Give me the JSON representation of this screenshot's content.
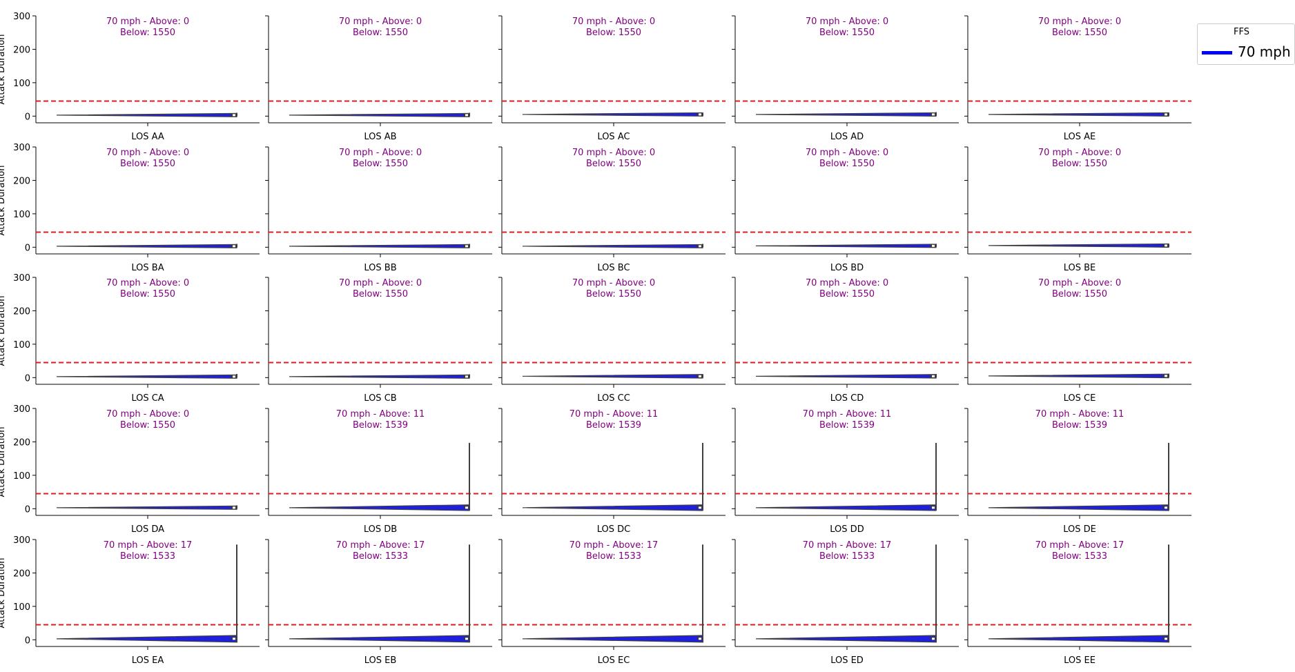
{
  "colors": {
    "violin_fill": "#1f1fe0",
    "violin_edge": "#404040",
    "threshold_line": "#e31a1c",
    "annotation_text": "#800080",
    "legend_line": "#0000ff"
  },
  "legend": {
    "title": "FFS",
    "label": "70 mph"
  },
  "chart_data": {
    "type": "violin",
    "ylabel": "Attack Duration",
    "ylim": [
      -20,
      300
    ],
    "yticks": [
      0,
      100,
      200,
      300
    ],
    "threshold": 45,
    "series_name": "70 mph",
    "panels": [
      {
        "label": "LOS AA",
        "annotation_line1": "70 mph - Above: 0",
        "annotation_line2": "Below: 1550",
        "violin": {
          "min": 0,
          "q1": 1,
          "median": 3,
          "q3": 6,
          "max": 10
        }
      },
      {
        "label": "LOS AB",
        "annotation_line1": "70 mph - Above: 0",
        "annotation_line2": "Below: 1550",
        "violin": {
          "min": 0,
          "q1": 1,
          "median": 3,
          "q3": 6,
          "max": 10
        }
      },
      {
        "label": "LOS AC",
        "annotation_line1": "70 mph - Above: 0",
        "annotation_line2": "Below: 1550",
        "violin": {
          "min": 1,
          "q1": 3,
          "median": 5,
          "q3": 7,
          "max": 10
        }
      },
      {
        "label": "LOS AD",
        "annotation_line1": "70 mph - Above: 0",
        "annotation_line2": "Below: 1550",
        "violin": {
          "min": 1,
          "q1": 3,
          "median": 5,
          "q3": 7,
          "max": 12
        }
      },
      {
        "label": "LOS AE",
        "annotation_line1": "70 mph - Above: 0",
        "annotation_line2": "Below: 1550",
        "violin": {
          "min": 1,
          "q1": 3,
          "median": 5,
          "q3": 7,
          "max": 10
        }
      },
      {
        "label": "LOS BA",
        "annotation_line1": "70 mph - Above: 0",
        "annotation_line2": "Below: 1550",
        "violin": {
          "min": 0,
          "q1": 1,
          "median": 3,
          "q3": 6,
          "max": 10
        }
      },
      {
        "label": "LOS BB",
        "annotation_line1": "70 mph - Above: 0",
        "annotation_line2": "Below: 1550",
        "violin": {
          "min": 0,
          "q1": 1,
          "median": 3,
          "q3": 6,
          "max": 10
        }
      },
      {
        "label": "LOS BC",
        "annotation_line1": "70 mph - Above: 0",
        "annotation_line2": "Below: 1550",
        "violin": {
          "min": 0,
          "q1": 1,
          "median": 3,
          "q3": 6,
          "max": 10
        }
      },
      {
        "label": "LOS BD",
        "annotation_line1": "70 mph - Above: 0",
        "annotation_line2": "Below: 1550",
        "violin": {
          "min": 1,
          "q1": 2,
          "median": 4,
          "q3": 7,
          "max": 10
        }
      },
      {
        "label": "LOS BE",
        "annotation_line1": "70 mph - Above: 0",
        "annotation_line2": "Below: 1550",
        "violin": {
          "min": 1,
          "q1": 2,
          "median": 5,
          "q3": 7,
          "max": 10
        }
      },
      {
        "label": "LOS CA",
        "annotation_line1": "70 mph - Above: 0",
        "annotation_line2": "Below: 1550",
        "violin": {
          "min": 0,
          "q1": 1,
          "median": 3,
          "q3": 6,
          "max": 11
        }
      },
      {
        "label": "LOS CB",
        "annotation_line1": "70 mph - Above: 0",
        "annotation_line2": "Below: 1550",
        "violin": {
          "min": 0,
          "q1": 1,
          "median": 3,
          "q3": 6,
          "max": 10
        }
      },
      {
        "label": "LOS CC",
        "annotation_line1": "70 mph - Above: 0",
        "annotation_line2": "Below: 1550",
        "violin": {
          "min": 0,
          "q1": 2,
          "median": 4,
          "q3": 7,
          "max": 10
        }
      },
      {
        "label": "LOS CD",
        "annotation_line1": "70 mph - Above: 0",
        "annotation_line2": "Below: 1550",
        "violin": {
          "min": 0,
          "q1": 2,
          "median": 4,
          "q3": 7,
          "max": 11
        }
      },
      {
        "label": "LOS CE",
        "annotation_line1": "70 mph - Above: 0",
        "annotation_line2": "Below: 1550",
        "violin": {
          "min": 1,
          "q1": 3,
          "median": 5,
          "q3": 8,
          "max": 12
        }
      },
      {
        "label": "LOS DA",
        "annotation_line1": "70 mph - Above: 0",
        "annotation_line2": "Below: 1550",
        "violin": {
          "min": 0,
          "q1": 1,
          "median": 3,
          "q3": 6,
          "max": 10
        }
      },
      {
        "label": "LOS DB",
        "annotation_line1": "70 mph - Above: 11",
        "annotation_line2": "Below: 1539",
        "violin": {
          "min": -5,
          "q1": 1,
          "median": 3,
          "q3": 8,
          "max": 197
        }
      },
      {
        "label": "LOS DC",
        "annotation_line1": "70 mph - Above: 11",
        "annotation_line2": "Below: 1539",
        "violin": {
          "min": -5,
          "q1": 1,
          "median": 3,
          "q3": 8,
          "max": 197
        }
      },
      {
        "label": "LOS DD",
        "annotation_line1": "70 mph - Above: 11",
        "annotation_line2": "Below: 1539",
        "violin": {
          "min": -5,
          "q1": 1,
          "median": 3,
          "q3": 8,
          "max": 197
        }
      },
      {
        "label": "LOS DE",
        "annotation_line1": "70 mph - Above: 11",
        "annotation_line2": "Below: 1539",
        "violin": {
          "min": -5,
          "q1": 1,
          "median": 3,
          "q3": 8,
          "max": 197
        }
      },
      {
        "label": "LOS EA",
        "annotation_line1": "70 mph - Above: 17",
        "annotation_line2": "Below: 1533",
        "violin": {
          "min": -8,
          "q1": 1,
          "median": 3,
          "q3": 8,
          "max": 285
        }
      },
      {
        "label": "LOS EB",
        "annotation_line1": "70 mph - Above: 17",
        "annotation_line2": "Below: 1533",
        "violin": {
          "min": -8,
          "q1": 1,
          "median": 3,
          "q3": 8,
          "max": 285
        }
      },
      {
        "label": "LOS EC",
        "annotation_line1": "70 mph - Above: 17",
        "annotation_line2": "Below: 1533",
        "violin": {
          "min": -8,
          "q1": 1,
          "median": 3,
          "q3": 8,
          "max": 285
        }
      },
      {
        "label": "LOS ED",
        "annotation_line1": "70 mph - Above: 17",
        "annotation_line2": "Below: 1533",
        "violin": {
          "min": -8,
          "q1": 1,
          "median": 3,
          "q3": 8,
          "max": 285
        }
      },
      {
        "label": "LOS EE",
        "annotation_line1": "70 mph - Above: 17",
        "annotation_line2": "Below: 1533",
        "violin": {
          "min": -8,
          "q1": 1,
          "median": 3,
          "q3": 8,
          "max": 285
        }
      }
    ]
  }
}
